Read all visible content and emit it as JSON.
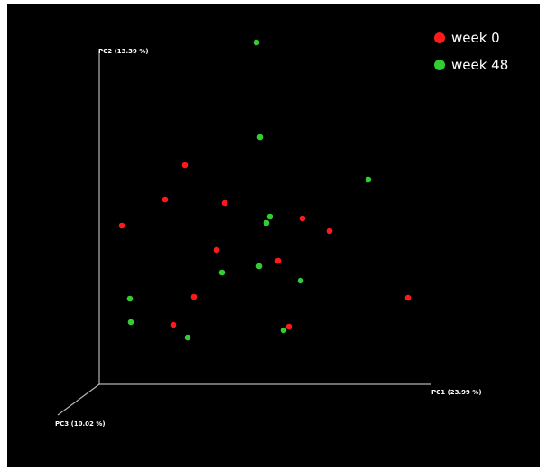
{
  "chart_data": {
    "type": "scatter",
    "projection": "3d",
    "axes": {
      "x": "PC1 (23.99 %)",
      "y": "PC2 (13.39 %)",
      "z": "PC3 (10.02 %)"
    },
    "grid": false,
    "legend_position": "top-right",
    "background": "#000000",
    "series": [
      {
        "name": "week 0",
        "color": "#ff1a1a",
        "points": [
          [
            197,
            179
          ],
          [
            175,
            217
          ],
          [
            127,
            246
          ],
          [
            241,
            221
          ],
          [
            327,
            238
          ],
          [
            357,
            252
          ],
          [
            232,
            273
          ],
          [
            300,
            285
          ],
          [
            207,
            325
          ],
          [
            184,
            356
          ],
          [
            312,
            358
          ],
          [
            444,
            326
          ]
        ]
      },
      {
        "name": "week 48",
        "color": "#33cc33",
        "points": [
          [
            276,
            43
          ],
          [
            280,
            148
          ],
          [
            400,
            195
          ],
          [
            291,
            236
          ],
          [
            287,
            243
          ],
          [
            279,
            291
          ],
          [
            238,
            298
          ],
          [
            325,
            307
          ],
          [
            136,
            327
          ],
          [
            137,
            353
          ],
          [
            306,
            362
          ],
          [
            200,
            370
          ]
        ]
      }
    ]
  }
}
